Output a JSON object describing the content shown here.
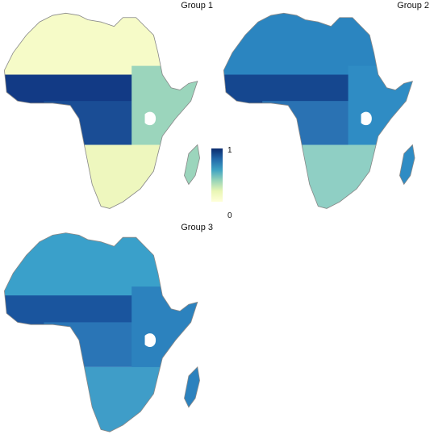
{
  "panels": [
    {
      "label": "Group 1",
      "colors": {
        "north": "#f6fbc8",
        "band": "#123a85",
        "central": "#1a4d95",
        "east": "#9bd5bc",
        "south": "#eef7be"
      }
    },
    {
      "label": "Group 2",
      "colors": {
        "north": "#2b85c0",
        "band": "#15478f",
        "central": "#2a72b3",
        "east": "#2f8cc4",
        "south": "#8fcfc4"
      }
    },
    {
      "label": "Group 3",
      "colors": {
        "north": "#3aa0ca",
        "band": "#1a559e",
        "central": "#2a75b6",
        "east": "#2c82be",
        "south": "#3f9dc8"
      }
    }
  ],
  "legend": {
    "max_label": "1",
    "min_label": "0"
  }
}
